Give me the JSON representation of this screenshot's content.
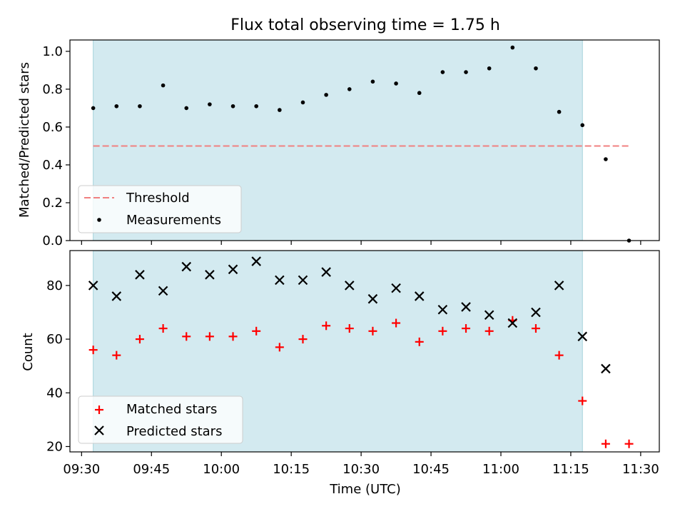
{
  "chart_data": [
    {
      "type": "scatter",
      "title": "Flux total observing time = 1.75 h",
      "xlabel": "",
      "ylabel": "Matched/Predicted stars",
      "ylim": [
        0.0,
        1.06
      ],
      "yticks": [
        "0.0",
        "0.2",
        "0.4",
        "0.6",
        "0.8",
        "1.0"
      ],
      "shaded_interval": [
        "09:32:30",
        "11:17:30"
      ],
      "threshold": {
        "name": "Threshold",
        "value": 0.5,
        "x_range": [
          "09:32:30",
          "11:27:30"
        ],
        "color": "#f08080",
        "style": "dashed"
      },
      "series": [
        {
          "name": "Measurements",
          "marker": "dot",
          "color": "#000000",
          "x": [
            "09:32:30",
            "09:37:30",
            "09:42:30",
            "09:47:30",
            "09:52:30",
            "09:57:30",
            "10:02:30",
            "10:07:30",
            "10:12:30",
            "10:17:30",
            "10:22:30",
            "10:27:30",
            "10:32:30",
            "10:37:30",
            "10:42:30",
            "10:47:30",
            "10:52:30",
            "10:57:30",
            "11:02:30",
            "11:07:30",
            "11:12:30",
            "11:17:30",
            "11:22:30",
            "11:27:30"
          ],
          "y": [
            0.7,
            0.71,
            0.71,
            0.82,
            0.7,
            0.72,
            0.71,
            0.71,
            0.69,
            0.73,
            0.77,
            0.8,
            0.84,
            0.83,
            0.78,
            0.89,
            0.89,
            0.91,
            1.02,
            0.91,
            0.68,
            0.61,
            0.43,
            0.0
          ]
        }
      ],
      "legend": [
        "Threshold",
        "Measurements"
      ],
      "legend_position": "lower-left"
    },
    {
      "type": "scatter",
      "xlabel": "Time (UTC)",
      "ylabel": "Count",
      "ylim": [
        18,
        93
      ],
      "yticks": [
        "20",
        "40",
        "60",
        "80"
      ],
      "xticks": [
        "09:30",
        "09:45",
        "10:00",
        "10:15",
        "10:30",
        "10:45",
        "11:00",
        "11:15",
        "11:30"
      ],
      "shaded_interval": [
        "09:32:30",
        "11:17:30"
      ],
      "series": [
        {
          "name": "Matched stars",
          "marker": "plus",
          "color": "#ff0000",
          "x": [
            "09:32:30",
            "09:37:30",
            "09:42:30",
            "09:47:30",
            "09:52:30",
            "09:57:30",
            "10:02:30",
            "10:07:30",
            "10:12:30",
            "10:17:30",
            "10:22:30",
            "10:27:30",
            "10:32:30",
            "10:37:30",
            "10:42:30",
            "10:47:30",
            "10:52:30",
            "10:57:30",
            "11:02:30",
            "11:07:30",
            "11:12:30",
            "11:17:30",
            "11:22:30",
            "11:27:30"
          ],
          "y": [
            56,
            54,
            60,
            64,
            61,
            61,
            61,
            63,
            57,
            60,
            65,
            64,
            63,
            66,
            59,
            63,
            64,
            63,
            67,
            64,
            54,
            37,
            21,
            21
          ]
        },
        {
          "name": "Predicted stars",
          "marker": "x",
          "color": "#000000",
          "x": [
            "09:32:30",
            "09:37:30",
            "09:42:30",
            "09:47:30",
            "09:52:30",
            "09:57:30",
            "10:02:30",
            "10:07:30",
            "10:12:30",
            "10:17:30",
            "10:22:30",
            "10:27:30",
            "10:32:30",
            "10:37:30",
            "10:42:30",
            "10:47:30",
            "10:52:30",
            "10:57:30",
            "11:02:30",
            "11:07:30",
            "11:12:30",
            "11:17:30",
            "11:22:30"
          ],
          "y": [
            80,
            76,
            84,
            78,
            87,
            84,
            86,
            89,
            82,
            82,
            85,
            80,
            75,
            79,
            76,
            71,
            72,
            69,
            66,
            70,
            80,
            61,
            49
          ]
        }
      ],
      "legend": [
        "Matched stars",
        "Predicted stars"
      ],
      "legend_position": "lower-left"
    }
  ],
  "colors": {
    "shade": "#d3eaf0",
    "threshold": "#f08080"
  }
}
